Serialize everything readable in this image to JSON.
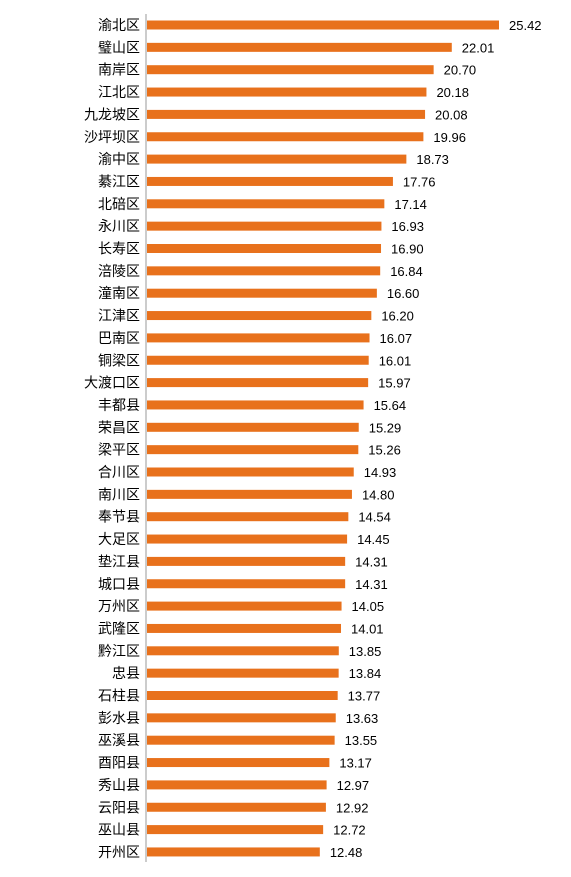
{
  "colors": {
    "bar": "#e8711c",
    "axis": "#9a9a9a",
    "text": "#000000"
  },
  "chart_data": {
    "type": "bar",
    "orientation": "horizontal",
    "categories": [
      "渝北区",
      "璧山区",
      "南岸区",
      "江北区",
      "九龙坡区",
      "沙坪坝区",
      "渝中区",
      "綦江区",
      "北碚区",
      "永川区",
      "长寿区",
      "涪陵区",
      "潼南区",
      "江津区",
      "巴南区",
      "铜梁区",
      "大渡口区",
      "丰都县",
      "荣昌区",
      "梁平区",
      "合川区",
      "南川区",
      "奉节县",
      "大足区",
      "垫江县",
      "城口县",
      "万州区",
      "武隆区",
      "黔江区",
      "忠县",
      "石柱县",
      "彭水县",
      "巫溪县",
      "酉阳县",
      "秀山县",
      "云阳县",
      "巫山县",
      "开州区"
    ],
    "values": [
      25.42,
      22.01,
      20.7,
      20.18,
      20.08,
      19.96,
      18.73,
      17.76,
      17.14,
      16.93,
      16.9,
      16.84,
      16.6,
      16.2,
      16.07,
      16.01,
      15.97,
      15.64,
      15.29,
      15.26,
      14.93,
      14.8,
      14.54,
      14.45,
      14.31,
      14.31,
      14.05,
      14.01,
      13.85,
      13.84,
      13.77,
      13.63,
      13.55,
      13.17,
      12.97,
      12.92,
      12.72,
      12.48
    ],
    "value_labels": [
      "25.42",
      "22.01",
      "20.70",
      "20.18",
      "20.08",
      "19.96",
      "18.73",
      "17.76",
      "17.14",
      "16.93",
      "16.90",
      "16.84",
      "16.60",
      "16.20",
      "16.07",
      "16.01",
      "15.97",
      "15.64",
      "15.29",
      "15.26",
      "14.93",
      "14.80",
      "14.54",
      "14.45",
      "14.31",
      "14.31",
      "14.05",
      "14.01",
      "13.85",
      "13.84",
      "13.77",
      "13.63",
      "13.55",
      "13.17",
      "12.97",
      "12.92",
      "12.72",
      "12.48"
    ],
    "xlim": [
      0,
      25.42
    ],
    "grid": false,
    "legend": "none"
  }
}
